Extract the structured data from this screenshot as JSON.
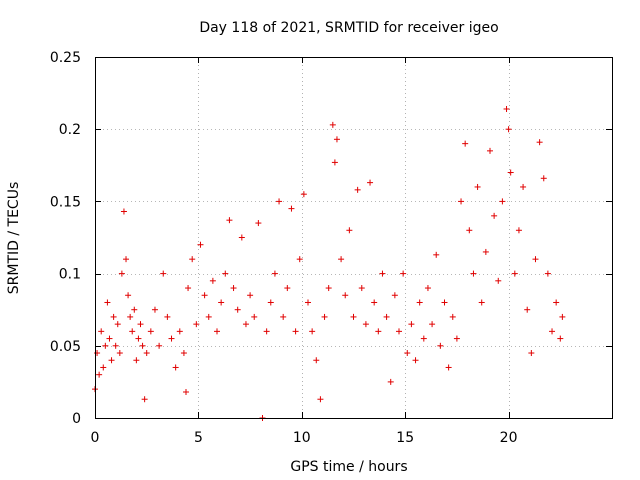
{
  "chart_data": {
    "type": "scatter",
    "title": "Day 118 of 2021, SRMTID for receiver igeo",
    "xlabel": "GPS time / hours",
    "ylabel": "SRMTID / TECUs",
    "xlim": [
      0,
      25
    ],
    "ylim": [
      0,
      0.25
    ],
    "xticks": [
      0,
      5,
      10,
      15,
      20
    ],
    "yticks": [
      0,
      0.05,
      0.1,
      0.15,
      0.2,
      0.25
    ],
    "ytick_labels": [
      "0",
      "0.05",
      "0.1",
      "0.15",
      "0.2",
      "0.25"
    ],
    "grid": true,
    "marker": "+",
    "color": "#e00000",
    "series": [
      {
        "name": "SRMTID",
        "points": [
          [
            0.0,
            0.02
          ],
          [
            0.1,
            0.045
          ],
          [
            0.2,
            0.03
          ],
          [
            0.3,
            0.06
          ],
          [
            0.4,
            0.035
          ],
          [
            0.5,
            0.05
          ],
          [
            0.6,
            0.08
          ],
          [
            0.7,
            0.055
          ],
          [
            0.8,
            0.04
          ],
          [
            0.9,
            0.07
          ],
          [
            1.0,
            0.05
          ],
          [
            1.1,
            0.065
          ],
          [
            1.2,
            0.045
          ],
          [
            1.3,
            0.1
          ],
          [
            1.4,
            0.143
          ],
          [
            1.5,
            0.11
          ],
          [
            1.6,
            0.085
          ],
          [
            1.7,
            0.07
          ],
          [
            1.8,
            0.06
          ],
          [
            1.9,
            0.075
          ],
          [
            2.0,
            0.04
          ],
          [
            2.1,
            0.055
          ],
          [
            2.2,
            0.065
          ],
          [
            2.3,
            0.05
          ],
          [
            2.4,
            0.013
          ],
          [
            2.5,
            0.045
          ],
          [
            2.7,
            0.06
          ],
          [
            2.9,
            0.075
          ],
          [
            3.1,
            0.05
          ],
          [
            3.3,
            0.1
          ],
          [
            3.5,
            0.07
          ],
          [
            3.7,
            0.055
          ],
          [
            3.9,
            0.035
          ],
          [
            4.1,
            0.06
          ],
          [
            4.3,
            0.045
          ],
          [
            4.4,
            0.018
          ],
          [
            4.5,
            0.09
          ],
          [
            4.7,
            0.11
          ],
          [
            4.9,
            0.065
          ],
          [
            5.1,
            0.12
          ],
          [
            5.3,
            0.085
          ],
          [
            5.5,
            0.07
          ],
          [
            5.7,
            0.095
          ],
          [
            5.9,
            0.06
          ],
          [
            6.1,
            0.08
          ],
          [
            6.3,
            0.1
          ],
          [
            6.5,
            0.137
          ],
          [
            6.7,
            0.09
          ],
          [
            6.9,
            0.075
          ],
          [
            7.1,
            0.125
          ],
          [
            7.3,
            0.065
          ],
          [
            7.5,
            0.085
          ],
          [
            7.7,
            0.07
          ],
          [
            7.9,
            0.135
          ],
          [
            8.1,
            0.0
          ],
          [
            8.3,
            0.06
          ],
          [
            8.5,
            0.08
          ],
          [
            8.7,
            0.1
          ],
          [
            8.9,
            0.15
          ],
          [
            9.1,
            0.07
          ],
          [
            9.3,
            0.09
          ],
          [
            9.5,
            0.145
          ],
          [
            9.7,
            0.06
          ],
          [
            9.9,
            0.11
          ],
          [
            10.1,
            0.155
          ],
          [
            10.3,
            0.08
          ],
          [
            10.5,
            0.06
          ],
          [
            10.7,
            0.04
          ],
          [
            10.9,
            0.013
          ],
          [
            11.1,
            0.07
          ],
          [
            11.3,
            0.09
          ],
          [
            11.5,
            0.203
          ],
          [
            11.6,
            0.177
          ],
          [
            11.7,
            0.193
          ],
          [
            11.9,
            0.11
          ],
          [
            12.1,
            0.085
          ],
          [
            12.3,
            0.13
          ],
          [
            12.5,
            0.07
          ],
          [
            12.7,
            0.158
          ],
          [
            12.9,
            0.09
          ],
          [
            13.1,
            0.065
          ],
          [
            13.3,
            0.163
          ],
          [
            13.5,
            0.08
          ],
          [
            13.7,
            0.06
          ],
          [
            13.9,
            0.1
          ],
          [
            14.1,
            0.07
          ],
          [
            14.3,
            0.025
          ],
          [
            14.5,
            0.085
          ],
          [
            14.7,
            0.06
          ],
          [
            14.9,
            0.1
          ],
          [
            15.1,
            0.045
          ],
          [
            15.3,
            0.065
          ],
          [
            15.5,
            0.04
          ],
          [
            15.7,
            0.08
          ],
          [
            15.9,
            0.055
          ],
          [
            16.1,
            0.09
          ],
          [
            16.3,
            0.065
          ],
          [
            16.5,
            0.113
          ],
          [
            16.7,
            0.05
          ],
          [
            16.9,
            0.08
          ],
          [
            17.1,
            0.035
          ],
          [
            17.3,
            0.07
          ],
          [
            17.5,
            0.055
          ],
          [
            17.7,
            0.15
          ],
          [
            17.9,
            0.19
          ],
          [
            18.1,
            0.13
          ],
          [
            18.3,
            0.1
          ],
          [
            18.5,
            0.16
          ],
          [
            18.7,
            0.08
          ],
          [
            18.9,
            0.115
          ],
          [
            19.1,
            0.185
          ],
          [
            19.3,
            0.14
          ],
          [
            19.5,
            0.095
          ],
          [
            19.7,
            0.15
          ],
          [
            19.9,
            0.214
          ],
          [
            20.0,
            0.2
          ],
          [
            20.1,
            0.17
          ],
          [
            20.3,
            0.1
          ],
          [
            20.5,
            0.13
          ],
          [
            20.7,
            0.16
          ],
          [
            20.9,
            0.075
          ],
          [
            21.1,
            0.045
          ],
          [
            21.3,
            0.11
          ],
          [
            21.5,
            0.191
          ],
          [
            21.7,
            0.166
          ],
          [
            21.9,
            0.1
          ],
          [
            22.1,
            0.06
          ],
          [
            22.3,
            0.08
          ],
          [
            22.5,
            0.055
          ],
          [
            22.6,
            0.07
          ]
        ]
      }
    ]
  }
}
